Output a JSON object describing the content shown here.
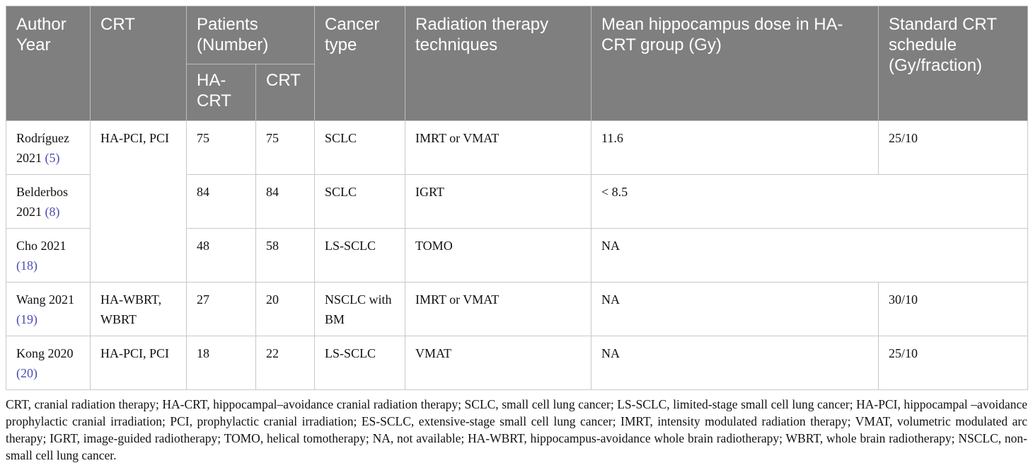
{
  "table": {
    "header": {
      "author": "Author Year",
      "crt": "CRT",
      "patients": "Patients (Number)",
      "ha_crt": "HA-CRT",
      "crt_n": "CRT",
      "cancer": "Cancer type",
      "technique": "Radiation therapy techniques",
      "mean_dose": "Mean hippocampus dose in HA-CRT group (Gy)",
      "schedule": "Standard CRT schedule (Gy/fraction)"
    },
    "rows": [
      {
        "author": "Rodríguez 2021",
        "ref": "(5)",
        "crt": "HA-PCI, PCI",
        "ha_crt": 75,
        "crt_n": 75,
        "cancer": "SCLC",
        "technique": "IMRT or VMAT",
        "mean_dose": 11.6,
        "schedule": "25/10"
      },
      {
        "author": "Belderbos 2021",
        "ref": "(8)",
        "ha_crt": 84,
        "crt_n": 84,
        "cancer": "SCLC",
        "technique": "IGRT",
        "mean_dose": "< 8.5"
      },
      {
        "author": "Cho 2021",
        "ref": "(18)",
        "ha_crt": 48,
        "crt_n": 58,
        "cancer": "LS-SCLC",
        "technique": "TOMO",
        "mean_dose": "NA"
      },
      {
        "author": "Wang 2021",
        "ref": "(19)",
        "crt": "HA-WBRT, WBRT",
        "ha_crt": 27,
        "crt_n": 20,
        "cancer": "NSCLC with BM",
        "technique": "IMRT or VMAT",
        "mean_dose": "NA",
        "schedule": "30/10"
      },
      {
        "author": "Kong 2020",
        "ref": "(20)",
        "crt": "HA-PCI, PCI",
        "ha_crt": 18,
        "crt_n": 22,
        "cancer": "LS-SCLC",
        "technique": "VMAT",
        "mean_dose": "NA",
        "schedule": "25/10"
      }
    ],
    "footnote": "CRT, cranial radiation therapy; HA-CRT, hippocampal–avoidance cranial radiation therapy; SCLC, small cell lung cancer; LS-SCLC, limited-stage small cell lung cancer; HA-PCI, hippocampal –avoidance prophylactic cranial irradiation; PCI, prophylactic cranial irradiation; ES-SCLC, extensive-stage small cell lung cancer; IMRT, intensity modulated radiation therapy; VMAT, volumetric modulated arc therapy; IGRT, image-guided radiotherapy; TOMO, helical tomotherapy; NA, not available; HA-WBRT, hippocampus-avoidance whole brain radiotherapy; WBRT, whole brain radiotherapy; NSCLC, non-small cell lung cancer."
  }
}
